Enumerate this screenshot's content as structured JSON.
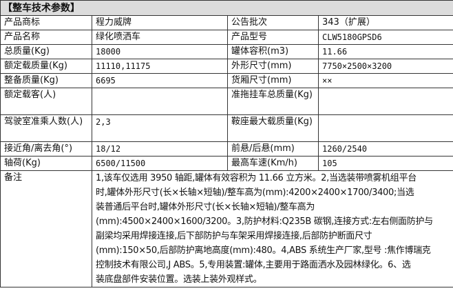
{
  "title": "【整车技术参数】",
  "rows": [
    {
      "l1": "产品商标",
      "v1": "程力威牌",
      "l2": "公告批次",
      "v2": "343（扩展）"
    },
    {
      "l1": "产品名称",
      "v1": "绿化喷洒车",
      "l2": "产品型号",
      "v2": "CLW5180GPSD6"
    },
    {
      "l1": "总质量(Kg)",
      "v1": "18000",
      "l2": "罐体容积(m3)",
      "v2": "11.66"
    },
    {
      "l1": "额定载质量(Kg)",
      "v1": "11110,11175",
      "l2": "外形尺寸(mm)",
      "v2": "7750×2500×3200"
    },
    {
      "l1": "整备质量(Kg)",
      "v1": "6695",
      "l2": "货厢尺寸(mm)",
      "v2": "××"
    },
    {
      "l1": "额定载客(人)",
      "v1": "",
      "l2": "准拖挂车总质量(Kg)",
      "v2": ""
    },
    {
      "l1": "驾驶室准乘人数(人)",
      "v1": "2,3",
      "l2": "鞍座最大载质量(Kg)",
      "v2": ""
    },
    {
      "l1": "接近角/离去角(°)",
      "v1": "18/12",
      "l2": "前悬/后悬(mm)",
      "v2": "1260/2540"
    },
    {
      "l1": "轴荷(Kg)",
      "v1": "6500/11500",
      "l2": "最高车速(Km/h)",
      "v2": "105"
    }
  ],
  "remarks": {
    "label": "备注",
    "lines": [
      "1,该车仅选用 3950 轴距,罐体有效容积为 11.66 立方米。2,当选装带喷雾机组平台",
      "时,罐体外形尺寸(长×长轴×短轴)/整车高为(mm):4200×2400×1700/3400;当选",
      "装普通后平台时,罐体外形尺寸(长×长轴×短轴)/整车高为",
      "(mm):4500×2400×1600/3200。3,防护材料:Q235B 碳钢,连接方式:左右侧面防护与",
      "副梁均采用焊接连接,后下部防护与车架采用焊接连接,后部防护断面尺寸",
      "(mm):150×50,后部防护离地高度(mm):480。4,ABS 系统生产厂家,型号 :焦作博瑞克",
      "控制技术有限公司,J ABS。5,专用装置:罐体,主要用于路面洒水及园林绿化。6、选",
      "装底盘部件安装位置。选装上装外观样式。"
    ]
  }
}
